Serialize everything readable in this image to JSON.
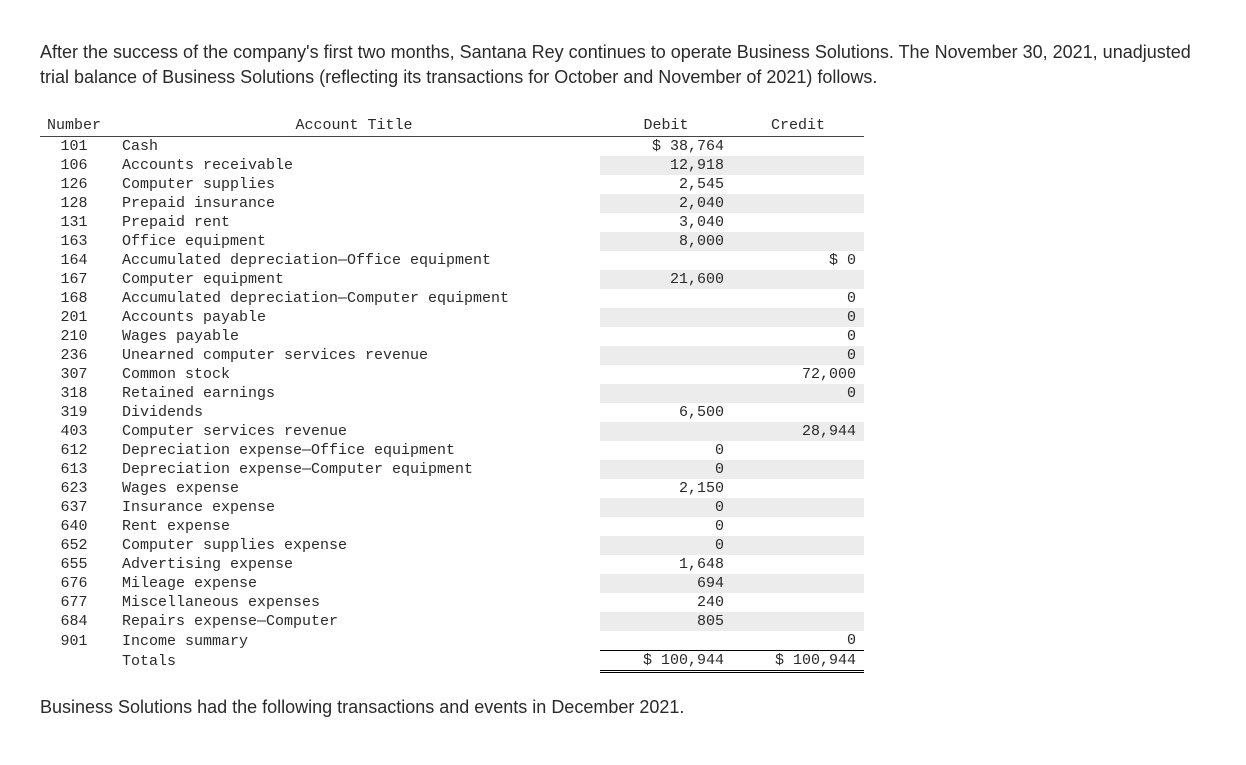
{
  "intro_text": "After the success of the company's first two months, Santana Rey continues to operate Business Solutions. The November 30, 2021, unadjusted trial balance of Business Solutions (reflecting its transactions for October and November of 2021) follows.",
  "table": {
    "headers": {
      "number": "Number",
      "account_title": "Account Title",
      "debit": "Debit",
      "credit": "Credit"
    },
    "rows": [
      {
        "num": "101",
        "title": "Cash",
        "debit": "$ 38,764",
        "credit": ""
      },
      {
        "num": "106",
        "title": "Accounts receivable",
        "debit": "12,918",
        "credit": ""
      },
      {
        "num": "126",
        "title": "Computer supplies",
        "debit": "2,545",
        "credit": ""
      },
      {
        "num": "128",
        "title": "Prepaid insurance",
        "debit": "2,040",
        "credit": ""
      },
      {
        "num": "131",
        "title": "Prepaid rent",
        "debit": "3,040",
        "credit": ""
      },
      {
        "num": "163",
        "title": "Office equipment",
        "debit": "8,000",
        "credit": ""
      },
      {
        "num": "164",
        "title": "Accumulated depreciation—Office equipment",
        "debit": "",
        "credit": "$ 0"
      },
      {
        "num": "167",
        "title": "Computer equipment",
        "debit": "21,600",
        "credit": ""
      },
      {
        "num": "168",
        "title": "Accumulated depreciation—Computer equipment",
        "debit": "",
        "credit": "0"
      },
      {
        "num": "201",
        "title": "Accounts payable",
        "debit": "",
        "credit": "0"
      },
      {
        "num": "210",
        "title": "Wages payable",
        "debit": "",
        "credit": "0"
      },
      {
        "num": "236",
        "title": "Unearned computer services revenue",
        "debit": "",
        "credit": "0"
      },
      {
        "num": "307",
        "title": "Common stock",
        "debit": "",
        "credit": "72,000"
      },
      {
        "num": "318",
        "title": "Retained earnings",
        "debit": "",
        "credit": "0"
      },
      {
        "num": "319",
        "title": "Dividends",
        "debit": "6,500",
        "credit": ""
      },
      {
        "num": "403",
        "title": "Computer services revenue",
        "debit": "",
        "credit": "28,944"
      },
      {
        "num": "612",
        "title": "Depreciation expense—Office equipment",
        "debit": "0",
        "credit": ""
      },
      {
        "num": "613",
        "title": "Depreciation expense—Computer equipment",
        "debit": "0",
        "credit": ""
      },
      {
        "num": "623",
        "title": "Wages expense",
        "debit": "2,150",
        "credit": ""
      },
      {
        "num": "637",
        "title": "Insurance expense",
        "debit": "0",
        "credit": ""
      },
      {
        "num": "640",
        "title": "Rent expense",
        "debit": "0",
        "credit": ""
      },
      {
        "num": "652",
        "title": "Computer supplies expense",
        "debit": "0",
        "credit": ""
      },
      {
        "num": "655",
        "title": "Advertising expense",
        "debit": "1,648",
        "credit": ""
      },
      {
        "num": "676",
        "title": "Mileage expense",
        "debit": "694",
        "credit": ""
      },
      {
        "num": "677",
        "title": "Miscellaneous expenses",
        "debit": "240",
        "credit": ""
      },
      {
        "num": "684",
        "title": "Repairs expense—Computer",
        "debit": "805",
        "credit": ""
      },
      {
        "num": "901",
        "title": "Income summary",
        "debit": "",
        "credit": "0"
      }
    ],
    "totals": {
      "label": "Totals",
      "debit": "$ 100,944",
      "credit": "$ 100,944"
    }
  },
  "follow_text": "Business Solutions had the following transactions and events in December 2021."
}
